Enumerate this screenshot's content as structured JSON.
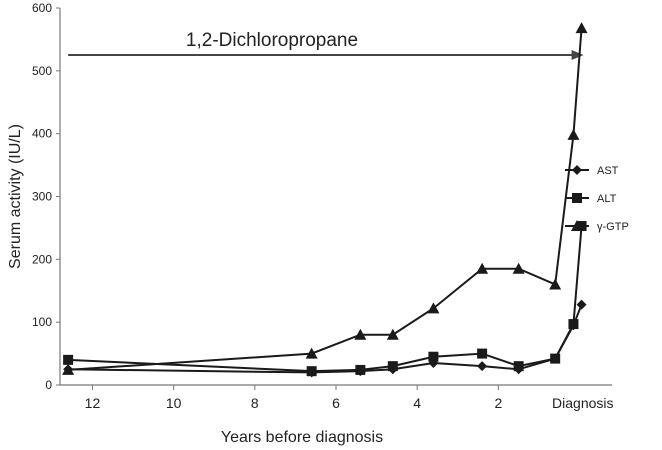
{
  "chart_data": {
    "type": "line",
    "xlabel": "Years before diagnosis",
    "ylabel": "Serum activity (IU/L)",
    "xlim": [
      12.8,
      -0.8
    ],
    "ylim": [
      0,
      600
    ],
    "x_ticks": [
      12,
      10,
      8,
      6,
      4,
      2
    ],
    "x_end_label": "Diagnosis",
    "y_ticks": [
      0,
      100,
      200,
      300,
      400,
      500,
      600
    ],
    "grid": false,
    "legend_position": "right",
    "annotation": {
      "label": "1,2-Dichloropropane",
      "from": 12.6,
      "to": -0.1
    },
    "series": [
      {
        "name": "AST",
        "marker": "diamond",
        "x": [
          12.6,
          6.6,
          5.4,
          4.6,
          3.6,
          2.4,
          1.5,
          0.6,
          0.15,
          -0.05
        ],
        "y": [
          25,
          20,
          22,
          25,
          35,
          30,
          25,
          42,
          95,
          128
        ]
      },
      {
        "name": "ALT",
        "marker": "square",
        "x": [
          12.6,
          6.6,
          5.4,
          4.6,
          3.6,
          2.4,
          1.5,
          0.6,
          0.15,
          -0.05
        ],
        "y": [
          40,
          22,
          24,
          30,
          45,
          50,
          30,
          42,
          97,
          253
        ]
      },
      {
        "name": "γ-GTP",
        "marker": "triangle",
        "x": [
          12.6,
          6.6,
          5.4,
          4.6,
          3.6,
          2.4,
          1.5,
          0.6,
          0.15,
          -0.05
        ],
        "y": [
          24,
          50,
          80,
          80,
          122,
          185,
          185,
          160,
          398,
          568
        ]
      }
    ]
  }
}
